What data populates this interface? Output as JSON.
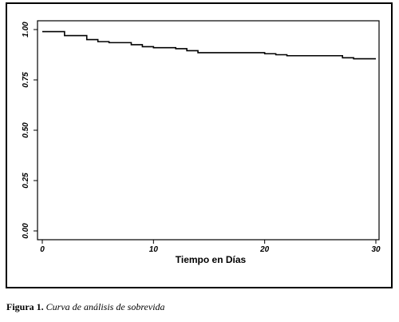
{
  "chart_data": {
    "type": "line",
    "step": true,
    "xlabel": "Tiempo en Días",
    "ylabel": "",
    "title": "",
    "xlim": [
      0,
      30
    ],
    "ylim": [
      0,
      1
    ],
    "xticks": [
      "0",
      "10",
      "20",
      "30"
    ],
    "yticks": [
      "0.00",
      "0.25",
      "0.50",
      "0.75",
      "1.00"
    ],
    "grid": false,
    "legend": "none",
    "series": [
      {
        "x": [
          0,
          2,
          4,
          5,
          6,
          8,
          9,
          10,
          12,
          13,
          14,
          20,
          21,
          22,
          27,
          28,
          30
        ],
        "y": [
          0.99,
          0.97,
          0.95,
          0.94,
          0.935,
          0.925,
          0.915,
          0.91,
          0.905,
          0.895,
          0.885,
          0.88,
          0.875,
          0.87,
          0.86,
          0.855,
          0.855
        ]
      }
    ]
  },
  "caption": {
    "label": "Figura 1.",
    "text": "Curva de análisis de sobrevida"
  },
  "colors": {
    "line": "#000000",
    "axis": "#000000",
    "background": "#ffffff"
  }
}
